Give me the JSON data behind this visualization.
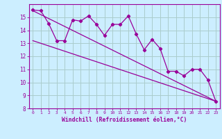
{
  "title": "",
  "xlabel": "Windchill (Refroidissement éolien,°C)",
  "ylabel": "",
  "bg_color": "#cceeff",
  "grid_color": "#aacccc",
  "line_color": "#990099",
  "spine_color": "#990099",
  "xlim": [
    -0.5,
    23.5
  ],
  "ylim": [
    8,
    16
  ],
  "yticks": [
    8,
    9,
    10,
    11,
    12,
    13,
    14,
    15
  ],
  "xticks": [
    0,
    1,
    2,
    3,
    4,
    5,
    6,
    7,
    8,
    9,
    10,
    11,
    12,
    13,
    14,
    15,
    16,
    17,
    18,
    19,
    20,
    21,
    22,
    23
  ],
  "data_series": [
    15.55,
    15.5,
    14.5,
    13.2,
    13.2,
    14.8,
    14.7,
    15.1,
    14.45,
    13.6,
    14.45,
    14.45,
    15.1,
    13.7,
    12.5,
    13.3,
    12.6,
    10.85,
    10.85,
    10.5,
    11.0,
    11.0,
    10.2,
    8.55
  ],
  "reg_line1_x": [
    0,
    23
  ],
  "reg_line1_y": [
    15.5,
    8.55
  ],
  "reg_line2_x": [
    0,
    23
  ],
  "reg_line2_y": [
    13.2,
    8.55
  ]
}
